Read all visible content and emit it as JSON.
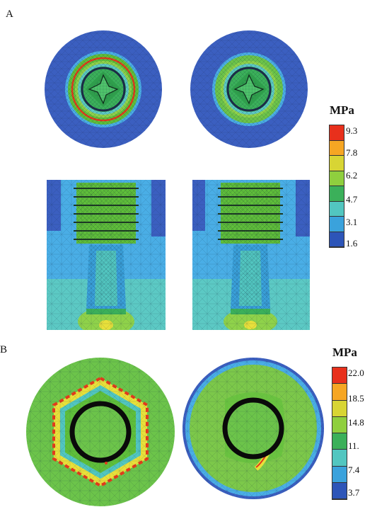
{
  "panelA": {
    "label": "A",
    "unit": "MPa",
    "scale_ticks": [
      "9.3",
      "7.8",
      "6.2",
      "4.7",
      "3.1",
      "1.6"
    ],
    "scale_colors": [
      "#e8301c",
      "#f6a623",
      "#d8d534",
      "#8fcf3e",
      "#3bb05a",
      "#52c6c0",
      "#3aa2dc",
      "#2d55b8"
    ]
  },
  "panelB": {
    "label": "B",
    "unit": "MPa",
    "scale_ticks": [
      "22.0",
      "18.5",
      "14.8",
      "11.",
      "7.4",
      "3.7"
    ],
    "scale_colors": [
      "#e8301c",
      "#f6a623",
      "#d8d534",
      "#8fcf3e",
      "#3bb05a",
      "#52c6c0",
      "#3aa2dc",
      "#2d55b8"
    ]
  },
  "colors": {
    "deep_blue": "#3b5fc0",
    "sky_blue": "#4aaee6",
    "cyan": "#5cc9c4",
    "green": "#5fbf3a",
    "light_green": "#8fd24a",
    "yellow": "#e8e03a",
    "red": "#e23a1c",
    "black": "#0a0a0a"
  }
}
